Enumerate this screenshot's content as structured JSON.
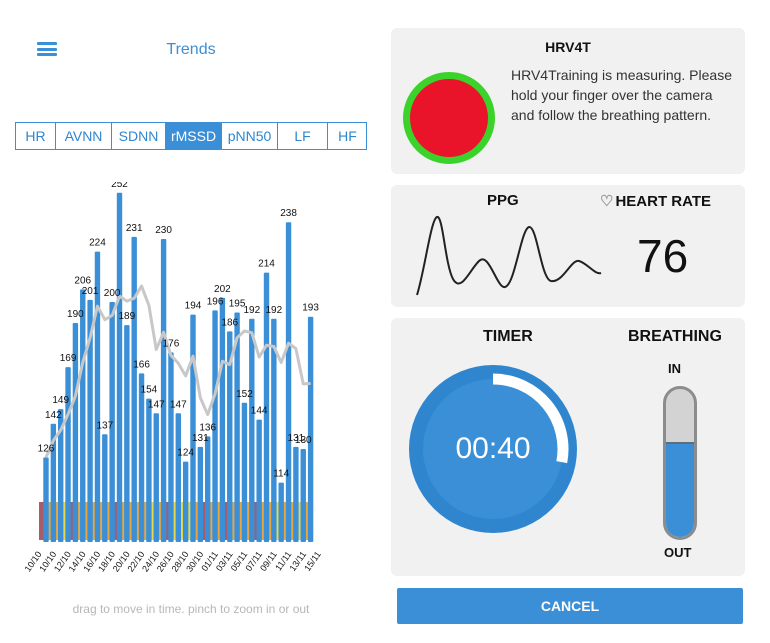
{
  "left": {
    "title": "Trends",
    "tabs": [
      "HR",
      "AVNN",
      "SDNN",
      "rMSSD",
      "pNN50",
      "LF",
      "HF"
    ],
    "active_tab": "rMSSD",
    "hint": "drag to move in time. pinch to zoom in or out"
  },
  "chart_data": {
    "type": "bar",
    "series": [
      {
        "values": [
          126,
          142,
          149,
          169,
          190,
          206,
          201,
          224,
          137,
          200,
          252,
          189,
          231,
          166,
          154,
          147,
          230,
          176,
          147,
          124,
          194,
          131,
          136,
          196,
          202,
          186,
          195,
          152,
          192,
          144,
          214,
          192,
          114,
          238,
          131,
          130,
          193
        ]
      }
    ],
    "x_tick_labels": [
      "10/10",
      "10/10",
      "12/10",
      "14/10",
      "16/10",
      "18/10",
      "20/10",
      "22/10",
      "24/10",
      "26/10",
      "28/10",
      "30/10",
      "01/11",
      "03/11",
      "05/11",
      "07/11",
      "09/11",
      "11/11",
      "13/11",
      "15/11"
    ],
    "trend_line": true,
    "colors": {
      "bar": "#3a8fd6",
      "trend": "#c8c8c8"
    },
    "strip_colors": [
      "#a85c6a",
      "#e8a640",
      "#e8a640",
      "#e8d84a",
      "#a85c6a",
      "#e8a640",
      "#e8a640",
      "#e8a640",
      "#e8a640",
      "#e8a640",
      "#a85c6a",
      "#e8a640",
      "#e8a640",
      "#e8a640",
      "#e8a640",
      "#e8d84a",
      "#e8a640",
      "#a85c6a",
      "#e8d84a",
      "#e8d84a",
      "#e8d84a",
      "#e8a640",
      "#a85c6a",
      "#e8a640",
      "#e8a640",
      "#a85c6a",
      "#e8a640",
      "#e8a640",
      "#e8a640",
      "#a85c6a",
      "#e8a640",
      "#e8a640",
      "#e8d84a",
      "#e8a640",
      "#e8a640",
      "#e8d84a",
      "#e8a640"
    ]
  },
  "right": {
    "card1": {
      "title": "HRV4T",
      "message": "HRV4Training is measuring. Please hold your finger over the camera and follow the breathing pattern."
    },
    "card2": {
      "ppg_label": "PPG",
      "hr_label": "HEART RATE",
      "heart_rate": "76"
    },
    "card3": {
      "timer_label": "TIMER",
      "breathing_label": "BREATHING",
      "timer_value": "00:40",
      "in_label": "IN",
      "out_label": "OUT",
      "breathing_level": 0.64,
      "timer_progress": 0.28
    },
    "cancel_label": "CANCEL"
  },
  "colors": {
    "accent": "#3a8fd6",
    "record_red": "#e9132a",
    "record_green": "#3bd32b"
  }
}
